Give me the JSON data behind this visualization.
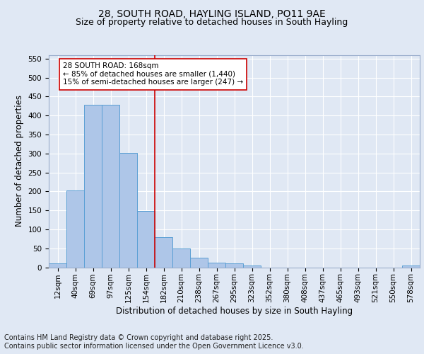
{
  "title": "28, SOUTH ROAD, HAYLING ISLAND, PO11 9AE",
  "subtitle": "Size of property relative to detached houses in South Hayling",
  "xlabel": "Distribution of detached houses by size in South Hayling",
  "ylabel": "Number of detached properties",
  "footer_line1": "Contains HM Land Registry data © Crown copyright and database right 2025.",
  "footer_line2": "Contains public sector information licensed under the Open Government Licence v3.0.",
  "bar_labels": [
    "12sqm",
    "40sqm",
    "69sqm",
    "97sqm",
    "125sqm",
    "154sqm",
    "182sqm",
    "210sqm",
    "238sqm",
    "267sqm",
    "295sqm",
    "323sqm",
    "352sqm",
    "380sqm",
    "408sqm",
    "437sqm",
    "465sqm",
    "493sqm",
    "521sqm",
    "550sqm",
    "578sqm"
  ],
  "bar_values": [
    10,
    203,
    428,
    428,
    301,
    148,
    80,
    50,
    25,
    12,
    10,
    5,
    0,
    0,
    0,
    0,
    0,
    0,
    0,
    0,
    4
  ],
  "bar_color": "#aec6e8",
  "bar_edge_color": "#5a9fd4",
  "vline_x_index": 5.5,
  "vline_color": "#cc0000",
  "annotation_text": "28 SOUTH ROAD: 168sqm\n← 85% of detached houses are smaller (1,440)\n15% of semi-detached houses are larger (247) →",
  "annotation_box_color": "#ffffff",
  "annotation_box_edge": "#cc0000",
  "ylim": [
    0,
    560
  ],
  "yticks": [
    0,
    50,
    100,
    150,
    200,
    250,
    300,
    350,
    400,
    450,
    500,
    550
  ],
  "bg_color": "#e0e8f4",
  "axes_bg_color": "#e0e8f4",
  "grid_color": "#ffffff",
  "title_fontsize": 10,
  "subtitle_fontsize": 9,
  "label_fontsize": 8.5,
  "tick_fontsize": 7.5,
  "annotation_fontsize": 7.5,
  "footer_fontsize": 7
}
